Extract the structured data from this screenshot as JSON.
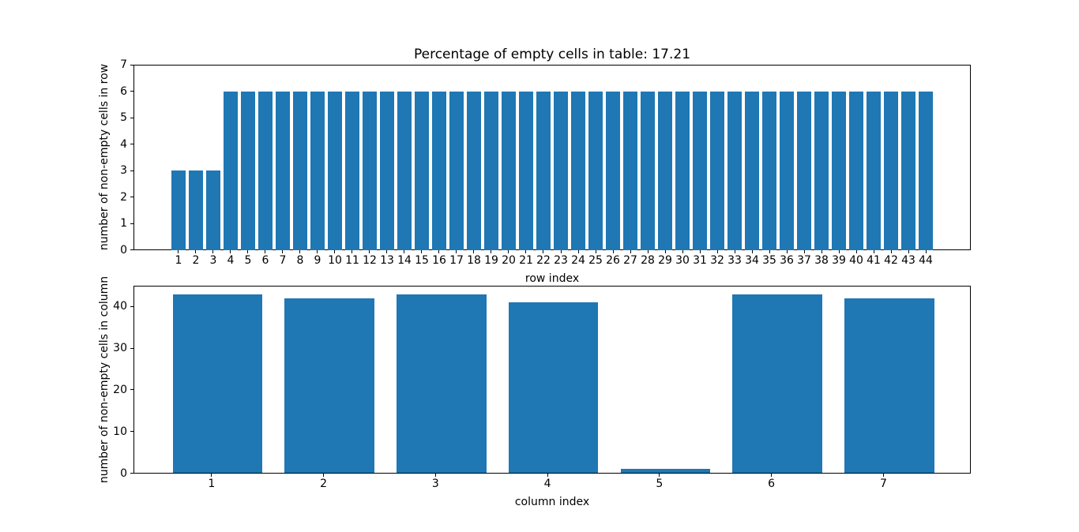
{
  "figure": {
    "background": "#ffffff",
    "bar_color": "#1f77b4",
    "text_color": "#000000"
  },
  "chart_data": [
    {
      "type": "bar",
      "title": "Percentage of empty cells in table: 17.21",
      "xlabel": "row index",
      "ylabel": "number of non-empty cells in row",
      "categories": [
        "1",
        "2",
        "3",
        "4",
        "5",
        "6",
        "7",
        "8",
        "9",
        "10",
        "11",
        "12",
        "13",
        "14",
        "15",
        "16",
        "17",
        "18",
        "19",
        "20",
        "21",
        "22",
        "23",
        "24",
        "25",
        "26",
        "27",
        "28",
        "29",
        "30",
        "31",
        "32",
        "33",
        "34",
        "35",
        "36",
        "37",
        "38",
        "39",
        "40",
        "41",
        "42",
        "43",
        "44"
      ],
      "values": [
        3,
        3,
        3,
        6,
        6,
        6,
        6,
        6,
        6,
        6,
        6,
        6,
        6,
        6,
        6,
        6,
        6,
        6,
        6,
        6,
        6,
        6,
        6,
        6,
        6,
        6,
        6,
        6,
        6,
        6,
        6,
        6,
        6,
        6,
        6,
        6,
        6,
        6,
        6,
        6,
        6,
        6,
        6,
        6
      ],
      "ylim": [
        0,
        7
      ],
      "yticks": [
        0,
        1,
        2,
        3,
        4,
        5,
        6,
        7
      ],
      "grid": false,
      "legend": null
    },
    {
      "type": "bar",
      "title": "",
      "xlabel": "column index",
      "ylabel": "number of non-empty cells in column",
      "categories": [
        "1",
        "2",
        "3",
        "4",
        "5",
        "6",
        "7"
      ],
      "values": [
        43,
        42,
        43,
        41,
        1,
        43,
        42
      ],
      "ylim": [
        0,
        45
      ],
      "yticks": [
        0,
        10,
        20,
        30,
        40
      ],
      "grid": false,
      "legend": null
    }
  ]
}
